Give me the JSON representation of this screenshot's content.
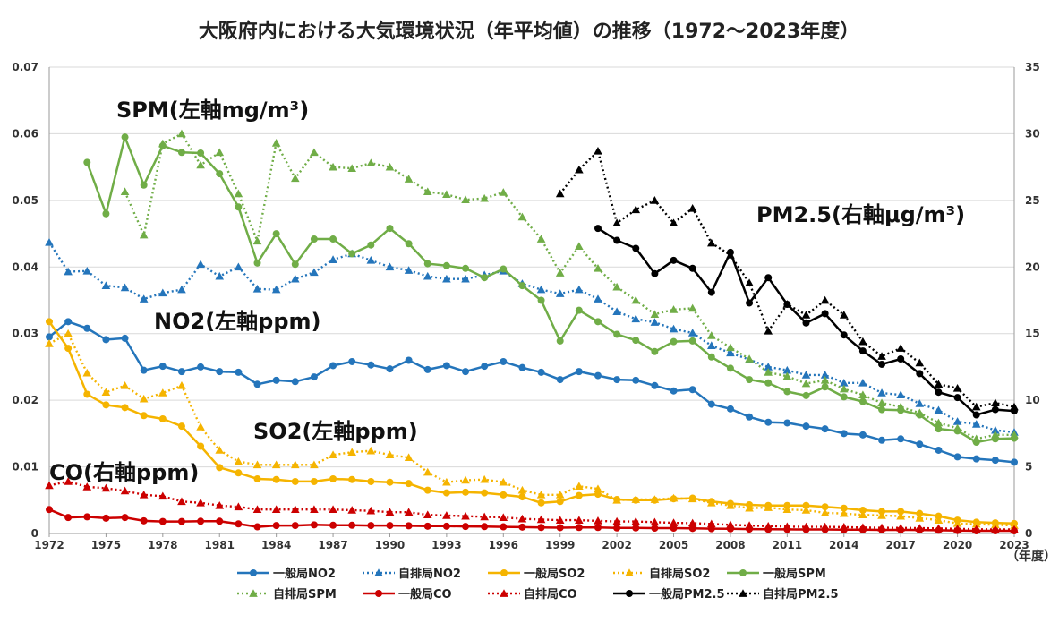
{
  "chart_data": {
    "type": "line",
    "title": "大阪府内における大気環境状況（年平均値）の推移（1972～2023年度）",
    "x_unit_label": "（年度）",
    "x_ticks": [
      1972,
      1975,
      1978,
      1981,
      1984,
      1987,
      1990,
      1993,
      1996,
      1999,
      2002,
      2005,
      2008,
      2011,
      2014,
      2017,
      2020,
      2023
    ],
    "x_range": [
      1972,
      2023
    ],
    "left_axis": {
      "ylim": [
        0,
        0.07
      ],
      "ticks": [
        "0",
        "0.01",
        "0.02",
        "0.03",
        "0.04",
        "0.05",
        "0.06",
        "0.07"
      ]
    },
    "right_axis": {
      "ylim": [
        0,
        35
      ],
      "ticks": [
        "0",
        "5",
        "10",
        "15",
        "20",
        "25",
        "30",
        "35"
      ]
    },
    "grid": true,
    "legend_position": "bottom",
    "annotations": {
      "spm": "SPM(左軸mg/m³)",
      "pm25": "PM2.5(右軸μg/m³)",
      "no2": "NO2(左軸ppm)",
      "so2": "SO2(左軸ppm)",
      "co": "CO(右軸ppm)"
    },
    "series": [
      {
        "name": "一般局NO2",
        "axis": "left",
        "color": "#2475bb",
        "style": "solid",
        "marker": "circle",
        "x": [
          1972,
          1973,
          1974,
          1975,
          1976,
          1977,
          1978,
          1979,
          1980,
          1981,
          1982,
          1983,
          1984,
          1985,
          1986,
          1987,
          1988,
          1989,
          1990,
          1991,
          1992,
          1993,
          1994,
          1995,
          1996,
          1997,
          1998,
          1999,
          2000,
          2001,
          2002,
          2003,
          2004,
          2005,
          2006,
          2007,
          2008,
          2009,
          2010,
          2011,
          2012,
          2013,
          2014,
          2015,
          2016,
          2017,
          2018,
          2019,
          2020,
          2021,
          2022,
          2023
        ],
        "values": [
          0.0295,
          0.0318,
          0.0308,
          0.0291,
          0.0293,
          0.0245,
          0.0251,
          0.0243,
          0.025,
          0.0243,
          0.0242,
          0.0224,
          0.023,
          0.0228,
          0.0235,
          0.0252,
          0.0258,
          0.0253,
          0.0247,
          0.026,
          0.0246,
          0.0252,
          0.0243,
          0.0251,
          0.0258,
          0.0249,
          0.0242,
          0.0231,
          0.0243,
          0.0237,
          0.0231,
          0.023,
          0.0222,
          0.0214,
          0.0216,
          0.0194,
          0.0187,
          0.0175,
          0.0167,
          0.0166,
          0.0161,
          0.0157,
          0.015,
          0.0148,
          0.014,
          0.0142,
          0.0134,
          0.0125,
          0.0115,
          0.0112,
          0.011,
          0.0107
        ]
      },
      {
        "name": "自排局NO2",
        "axis": "left",
        "color": "#2475bb",
        "style": "dotted",
        "marker": "triangle",
        "x": [
          1972,
          1973,
          1974,
          1975,
          1976,
          1977,
          1978,
          1979,
          1980,
          1981,
          1982,
          1983,
          1984,
          1985,
          1986,
          1987,
          1988,
          1989,
          1990,
          1991,
          1992,
          1993,
          1994,
          1995,
          1996,
          1997,
          1998,
          1999,
          2000,
          2001,
          2002,
          2003,
          2004,
          2005,
          2006,
          2007,
          2008,
          2009,
          2010,
          2011,
          2012,
          2013,
          2014,
          2015,
          2016,
          2017,
          2018,
          2019,
          2020,
          2021,
          2022,
          2023
        ],
        "values": [
          0.0437,
          0.0393,
          0.0394,
          0.0372,
          0.0369,
          0.0352,
          0.0361,
          0.0366,
          0.0404,
          0.0386,
          0.04,
          0.0367,
          0.0366,
          0.0382,
          0.0392,
          0.0411,
          0.042,
          0.041,
          0.04,
          0.0395,
          0.0386,
          0.0382,
          0.0382,
          0.0388,
          0.0394,
          0.0375,
          0.0366,
          0.036,
          0.0366,
          0.0352,
          0.0333,
          0.0322,
          0.0317,
          0.0307,
          0.0301,
          0.0282,
          0.0271,
          0.0261,
          0.025,
          0.0245,
          0.0238,
          0.0238,
          0.0226,
          0.0226,
          0.0211,
          0.0208,
          0.0195,
          0.0185,
          0.0168,
          0.0164,
          0.0155,
          0.0152
        ]
      },
      {
        "name": "一般局SO2",
        "axis": "left",
        "color": "#f5b400",
        "style": "solid",
        "marker": "circle",
        "x": [
          1972,
          1973,
          1974,
          1975,
          1976,
          1977,
          1978,
          1979,
          1980,
          1981,
          1982,
          1983,
          1984,
          1985,
          1986,
          1987,
          1988,
          1989,
          1990,
          1991,
          1992,
          1993,
          1994,
          1995,
          1996,
          1997,
          1998,
          1999,
          2000,
          2001,
          2002,
          2003,
          2004,
          2005,
          2006,
          2007,
          2008,
          2009,
          2010,
          2011,
          2012,
          2013,
          2014,
          2015,
          2016,
          2017,
          2018,
          2019,
          2020,
          2021,
          2022,
          2023
        ],
        "values": [
          0.0318,
          0.0278,
          0.0209,
          0.0193,
          0.0189,
          0.0177,
          0.0172,
          0.0161,
          0.0131,
          0.0099,
          0.0091,
          0.0082,
          0.0081,
          0.0078,
          0.0078,
          0.0082,
          0.0081,
          0.0078,
          0.0077,
          0.0075,
          0.0065,
          0.0061,
          0.0062,
          0.0061,
          0.0058,
          0.0055,
          0.0046,
          0.0048,
          0.0057,
          0.0059,
          0.0051,
          0.005,
          0.005,
          0.0052,
          0.0053,
          0.0048,
          0.0045,
          0.0043,
          0.0042,
          0.0042,
          0.0042,
          0.004,
          0.0038,
          0.0035,
          0.0033,
          0.0033,
          0.003,
          0.0026,
          0.002,
          0.0017,
          0.0016,
          0.0015
        ]
      },
      {
        "name": "自排局SO2",
        "axis": "left",
        "color": "#f5b400",
        "style": "dotted",
        "marker": "triangle",
        "x": [
          1972,
          1973,
          1974,
          1975,
          1976,
          1977,
          1978,
          1979,
          1980,
          1981,
          1982,
          1983,
          1984,
          1985,
          1986,
          1987,
          1988,
          1989,
          1990,
          1991,
          1992,
          1993,
          1994,
          1995,
          1996,
          1997,
          1998,
          1999,
          2000,
          2001,
          2002,
          2003,
          2004,
          2005,
          2006,
          2007,
          2008,
          2009,
          2010,
          2011,
          2012,
          2013,
          2014,
          2015,
          2016,
          2017,
          2018,
          2019,
          2020,
          2021,
          2022,
          2023
        ],
        "values": [
          0.0285,
          0.03,
          0.0241,
          0.0212,
          0.0222,
          0.0202,
          0.0211,
          0.0222,
          0.016,
          0.0125,
          0.0108,
          0.0103,
          0.0103,
          0.0103,
          0.0103,
          0.0118,
          0.0122,
          0.0124,
          0.0118,
          0.0114,
          0.0092,
          0.0077,
          0.008,
          0.0081,
          0.0077,
          0.0065,
          0.0058,
          0.0058,
          0.0071,
          0.0067,
          0.005,
          0.0051,
          0.0051,
          0.0053,
          0.0052,
          0.0046,
          0.0042,
          0.0038,
          0.0039,
          0.0036,
          0.0035,
          0.0031,
          0.003,
          0.0028,
          0.0027,
          0.0026,
          0.0023,
          0.002,
          0.0015,
          0.0014,
          0.0013,
          0.0012
        ]
      },
      {
        "name": "一般局SPM",
        "axis": "left",
        "color": "#70ad47",
        "style": "solid",
        "marker": "circle",
        "x": [
          1974,
          1975,
          1976,
          1977,
          1978,
          1979,
          1980,
          1981,
          1982,
          1983,
          1984,
          1985,
          1986,
          1987,
          1988,
          1989,
          1990,
          1991,
          1992,
          1993,
          1994,
          1995,
          1996,
          1997,
          1998,
          1999,
          2000,
          2001,
          2002,
          2003,
          2004,
          2005,
          2006,
          2007,
          2008,
          2009,
          2010,
          2011,
          2012,
          2013,
          2014,
          2015,
          2016,
          2017,
          2018,
          2019,
          2020,
          2021,
          2022,
          2023
        ],
        "values": [
          0.0557,
          0.048,
          0.0595,
          0.0523,
          0.0582,
          0.0572,
          0.0571,
          0.054,
          0.049,
          0.0406,
          0.045,
          0.0404,
          0.0442,
          0.0442,
          0.042,
          0.0433,
          0.0458,
          0.0435,
          0.0405,
          0.0402,
          0.0398,
          0.0384,
          0.0397,
          0.0372,
          0.035,
          0.0289,
          0.0335,
          0.0318,
          0.0299,
          0.029,
          0.0273,
          0.0288,
          0.0289,
          0.0265,
          0.0248,
          0.0231,
          0.0226,
          0.0213,
          0.0207,
          0.022,
          0.0205,
          0.0198,
          0.0186,
          0.0185,
          0.0178,
          0.0157,
          0.0154,
          0.0137,
          0.0142,
          0.0143
        ]
      },
      {
        "name": "自排局SPM",
        "axis": "left",
        "color": "#70ad47",
        "style": "dotted",
        "marker": "triangle",
        "x": [
          1976,
          1977,
          1978,
          1979,
          1980,
          1981,
          1982,
          1983,
          1984,
          1985,
          1986,
          1987,
          1988,
          1989,
          1990,
          1991,
          1992,
          1993,
          1994,
          1995,
          1996,
          1997,
          1998,
          1999,
          2000,
          2001,
          2002,
          2003,
          2004,
          2005,
          2006,
          2007,
          2008,
          2009,
          2010,
          2011,
          2012,
          2013,
          2014,
          2015,
          2016,
          2017,
          2018,
          2019,
          2020,
          2021,
          2022,
          2023
        ],
        "values": [
          0.0513,
          0.0448,
          0.0585,
          0.06,
          0.0553,
          0.0572,
          0.051,
          0.0439,
          0.0586,
          0.0533,
          0.0572,
          0.055,
          0.0548,
          0.0556,
          0.055,
          0.0532,
          0.0513,
          0.0509,
          0.0501,
          0.0503,
          0.0512,
          0.0475,
          0.0442,
          0.0391,
          0.0431,
          0.0398,
          0.037,
          0.035,
          0.0329,
          0.0336,
          0.0338,
          0.0297,
          0.0279,
          0.0262,
          0.0242,
          0.0236,
          0.0225,
          0.023,
          0.0217,
          0.0208,
          0.0196,
          0.019,
          0.0181,
          0.0166,
          0.0158,
          0.0142,
          0.0148,
          0.0148
        ]
      },
      {
        "name": "一般局CO",
        "axis": "right",
        "color": "#cc0000",
        "style": "solid",
        "marker": "circle",
        "x": [
          1972,
          1973,
          1974,
          1975,
          1976,
          1977,
          1978,
          1979,
          1980,
          1981,
          1982,
          1983,
          1984,
          1985,
          1986,
          1987,
          1988,
          1989,
          1990,
          1991,
          1992,
          1993,
          1994,
          1995,
          1996,
          1997,
          1998,
          1999,
          2000,
          2001,
          2002,
          2003,
          2004,
          2005,
          2006,
          2007,
          2008,
          2009,
          2010,
          2011,
          2012,
          2013,
          2014,
          2015,
          2016,
          2017,
          2018,
          2019,
          2020,
          2021,
          2022,
          2023
        ],
        "values": [
          1.8,
          1.2,
          1.25,
          1.15,
          1.2,
          0.95,
          0.9,
          0.9,
          0.92,
          0.92,
          0.72,
          0.5,
          0.6,
          0.6,
          0.65,
          0.62,
          0.62,
          0.6,
          0.6,
          0.58,
          0.55,
          0.55,
          0.53,
          0.52,
          0.5,
          0.48,
          0.45,
          0.44,
          0.45,
          0.45,
          0.42,
          0.42,
          0.4,
          0.4,
          0.38,
          0.36,
          0.35,
          0.33,
          0.32,
          0.31,
          0.3,
          0.3,
          0.28,
          0.28,
          0.27,
          0.27,
          0.26,
          0.24,
          0.22,
          0.2,
          0.2,
          0.2
        ]
      },
      {
        "name": "自排局CO",
        "axis": "right",
        "color": "#cc0000",
        "style": "dotted",
        "marker": "triangle",
        "x": [
          1972,
          1973,
          1974,
          1975,
          1976,
          1977,
          1978,
          1979,
          1980,
          1981,
          1982,
          1983,
          1984,
          1985,
          1986,
          1987,
          1988,
          1989,
          1990,
          1991,
          1992,
          1993,
          1994,
          1995,
          1996,
          1997,
          1998,
          1999,
          2000,
          2001,
          2002,
          2003,
          2004,
          2005,
          2006,
          2007,
          2008,
          2009,
          2010,
          2011,
          2012,
          2013,
          2014,
          2015,
          2016,
          2017,
          2018,
          2019,
          2020,
          2021,
          2022,
          2023
        ],
        "values": [
          3.6,
          3.9,
          3.5,
          3.4,
          3.2,
          2.9,
          2.8,
          2.4,
          2.3,
          2.1,
          2.0,
          1.8,
          1.8,
          1.8,
          1.8,
          1.8,
          1.75,
          1.7,
          1.6,
          1.6,
          1.4,
          1.35,
          1.3,
          1.25,
          1.2,
          1.1,
          1.05,
          1.0,
          1.0,
          0.95,
          0.9,
          0.9,
          0.85,
          0.8,
          0.78,
          0.72,
          0.65,
          0.6,
          0.55,
          0.52,
          0.5,
          0.5,
          0.48,
          0.45,
          0.43,
          0.42,
          0.4,
          0.38,
          0.35,
          0.32,
          0.3,
          0.3
        ]
      },
      {
        "name": "一般局PM2.5",
        "axis": "right",
        "color": "#000000",
        "style": "solid",
        "marker": "circle",
        "x": [
          2001,
          2002,
          2003,
          2004,
          2005,
          2006,
          2007,
          2008,
          2009,
          2010,
          2011,
          2012,
          2013,
          2014,
          2015,
          2016,
          2017,
          2018,
          2019,
          2020,
          2021,
          2022,
          2023
        ],
        "values": [
          22.9,
          22.0,
          21.4,
          19.5,
          20.5,
          19.9,
          18.1,
          21.1,
          17.3,
          19.2,
          17.2,
          15.8,
          16.5,
          14.9,
          13.7,
          12.7,
          13.1,
          12.0,
          10.6,
          10.2,
          8.9,
          9.3,
          9.2
        ]
      },
      {
        "name": "自排局PM2.5",
        "axis": "right",
        "color": "#000000",
        "style": "dotted",
        "marker": "triangle",
        "x": [
          1999,
          2000,
          2001,
          2002,
          2003,
          2004,
          2005,
          2006,
          2007,
          2008,
          2009,
          2010,
          2011,
          2012,
          2013,
          2014,
          2015,
          2016,
          2017,
          2018,
          2019,
          2020,
          2021,
          2022,
          2023
        ],
        "values": [
          25.5,
          27.3,
          28.7,
          23.3,
          24.3,
          25.0,
          23.3,
          24.4,
          21.8,
          20.9,
          18.8,
          15.2,
          17.2,
          16.4,
          17.5,
          16.4,
          14.4,
          13.3,
          13.9,
          12.8,
          11.2,
          10.9,
          9.5,
          9.8,
          9.5
        ]
      }
    ]
  }
}
